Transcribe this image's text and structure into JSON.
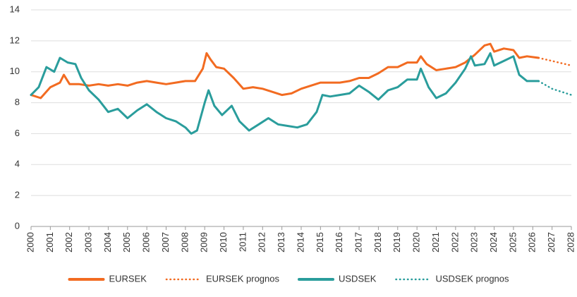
{
  "chart_data": {
    "type": "line",
    "xlim": [
      2000,
      2028
    ],
    "xticks": [
      2000,
      2001,
      2002,
      2003,
      2004,
      2005,
      2006,
      2007,
      2008,
      2009,
      2010,
      2011,
      2012,
      2013,
      2014,
      2015,
      2016,
      2017,
      2018,
      2019,
      2020,
      2021,
      2022,
      2023,
      2024,
      2025,
      2026,
      2027,
      2028
    ],
    "ylim": [
      0,
      14
    ],
    "yticks": [
      0,
      2,
      4,
      6,
      8,
      10,
      12,
      14
    ],
    "grid": true,
    "legend": "bottom",
    "series": [
      {
        "name": "EURSEK",
        "color": "#f26b21",
        "style": "solid",
        "x": [
          2000,
          2000.5,
          2001,
          2001.5,
          2001.7,
          2002,
          2002.5,
          2003,
          2003.5,
          2004,
          2004.5,
          2005,
          2005.5,
          2006,
          2006.5,
          2007,
          2007.5,
          2008,
          2008.5,
          2008.9,
          2009.1,
          2009.3,
          2009.6,
          2010,
          2010.5,
          2011,
          2011.5,
          2012,
          2012.5,
          2013,
          2013.5,
          2014,
          2014.5,
          2015,
          2015.5,
          2016,
          2016.5,
          2017,
          2017.5,
          2018,
          2018.5,
          2019,
          2019.5,
          2020,
          2020.2,
          2020.5,
          2021,
          2021.5,
          2022,
          2022.5,
          2023,
          2023.5,
          2023.8,
          2024,
          2024.5,
          2025,
          2025.3,
          2025.7,
          2026.3
        ],
        "values": [
          8.5,
          8.3,
          9.0,
          9.3,
          9.8,
          9.2,
          9.2,
          9.1,
          9.2,
          9.1,
          9.2,
          9.1,
          9.3,
          9.4,
          9.3,
          9.2,
          9.3,
          9.4,
          9.4,
          10.2,
          11.2,
          10.8,
          10.3,
          10.2,
          9.6,
          8.9,
          9.0,
          8.9,
          8.7,
          8.5,
          8.6,
          8.9,
          9.1,
          9.3,
          9.3,
          9.3,
          9.4,
          9.6,
          9.6,
          9.9,
          10.3,
          10.3,
          10.6,
          10.6,
          11.0,
          10.5,
          10.1,
          10.2,
          10.3,
          10.6,
          11.1,
          11.7,
          11.8,
          11.3,
          11.5,
          11.4,
          10.9,
          11.0,
          10.9
        ]
      },
      {
        "name": "EURSEK prognos",
        "color": "#f26b21",
        "style": "dotted",
        "x": [
          2026.3,
          2027,
          2028
        ],
        "values": [
          10.9,
          10.7,
          10.4
        ]
      },
      {
        "name": "USDSEK",
        "color": "#2a9d9c",
        "style": "solid",
        "x": [
          2000,
          2000.4,
          2000.8,
          2001.2,
          2001.5,
          2001.9,
          2002.3,
          2002.6,
          2003,
          2003.5,
          2004,
          2004.5,
          2005,
          2005.5,
          2006,
          2006.5,
          2007,
          2007.5,
          2008,
          2008.3,
          2008.6,
          2009,
          2009.2,
          2009.5,
          2009.9,
          2010.4,
          2010.8,
          2011.3,
          2011.8,
          2012.3,
          2012.8,
          2013.3,
          2013.8,
          2014.3,
          2014.8,
          2015.1,
          2015.5,
          2016,
          2016.5,
          2017,
          2017.5,
          2018,
          2018.5,
          2019,
          2019.5,
          2020,
          2020.2,
          2020.6,
          2021,
          2021.5,
          2022,
          2022.5,
          2022.8,
          2023,
          2023.5,
          2023.8,
          2024,
          2024.5,
          2025,
          2025.3,
          2025.7,
          2026.3
        ],
        "values": [
          8.5,
          9.0,
          10.3,
          10.0,
          10.9,
          10.6,
          10.5,
          9.6,
          8.8,
          8.2,
          7.4,
          7.6,
          7.0,
          7.5,
          7.9,
          7.4,
          7.0,
          6.8,
          6.4,
          6.0,
          6.2,
          8.0,
          8.8,
          7.8,
          7.2,
          7.8,
          6.8,
          6.2,
          6.6,
          7.0,
          6.6,
          6.5,
          6.4,
          6.6,
          7.4,
          8.5,
          8.4,
          8.5,
          8.6,
          9.1,
          8.7,
          8.2,
          8.8,
          9.0,
          9.5,
          9.5,
          10.2,
          9.0,
          8.3,
          8.6,
          9.3,
          10.2,
          11.0,
          10.4,
          10.5,
          11.2,
          10.4,
          10.7,
          11.0,
          9.8,
          9.4,
          9.4
        ]
      },
      {
        "name": "USDSEK prognos",
        "color": "#2a9d9c",
        "style": "dotted",
        "x": [
          2026.3,
          2027,
          2028
        ],
        "values": [
          9.4,
          8.9,
          8.5
        ]
      }
    ]
  }
}
